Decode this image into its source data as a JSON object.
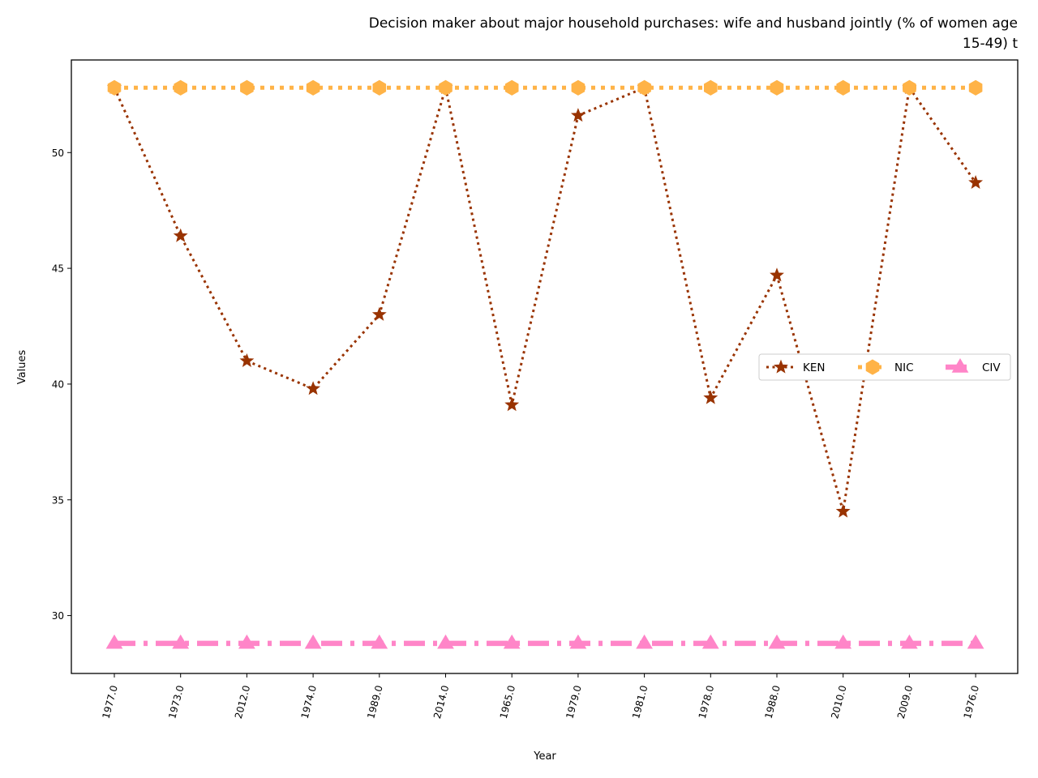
{
  "chart_data": {
    "type": "line",
    "title_lines": [
      "Decision maker about major household purchases: wife and husband jointly (% of women age",
      "15-49) t"
    ],
    "xlabel": "Year",
    "ylabel": "Values",
    "categories": [
      "1977.0",
      "1973.0",
      "2012.0",
      "1974.0",
      "1989.0",
      "2014.0",
      "1965.0",
      "1979.0",
      "1981.0",
      "1978.0",
      "1988.0",
      "2010.0",
      "2009.0",
      "1976.0"
    ],
    "yticks": [
      30,
      35,
      40,
      45,
      50
    ],
    "ylim": [
      27.5,
      54.0
    ],
    "grid": false,
    "legend_position": "center-right",
    "series": [
      {
        "name": "KEN",
        "color": "#993300",
        "marker": "star",
        "line_style": "dotted",
        "values": [
          52.8,
          46.4,
          41.0,
          39.8,
          43.0,
          52.8,
          39.1,
          51.6,
          52.8,
          39.4,
          44.7,
          34.5,
          52.8,
          48.7
        ]
      },
      {
        "name": "NIC",
        "color": "#ffb347",
        "marker": "hexagon",
        "line_style": "dotted-thick",
        "values": [
          52.8,
          52.8,
          52.8,
          52.8,
          52.8,
          52.8,
          52.8,
          52.8,
          52.8,
          52.8,
          52.8,
          52.8,
          52.8,
          52.8
        ]
      },
      {
        "name": "CIV",
        "color": "#ff85c8",
        "marker": "triangle",
        "line_style": "dashdot",
        "values": [
          28.8,
          28.8,
          28.8,
          28.8,
          28.8,
          28.8,
          28.8,
          28.8,
          28.8,
          28.8,
          28.8,
          28.8,
          28.8,
          28.8
        ]
      }
    ]
  }
}
